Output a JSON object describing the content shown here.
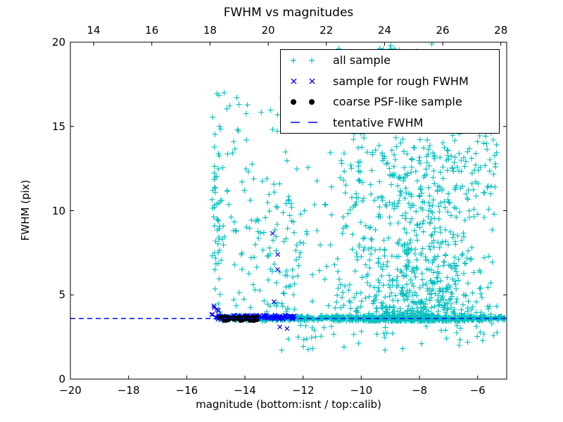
{
  "chart_data": {
    "type": "scatter",
    "title": "FWHM vs magnitudes",
    "xlabel": "magnitude (bottom:isnt / top:calib)",
    "ylabel": "FWHM (pix)",
    "xlim": [
      -20,
      -5
    ],
    "ylim": [
      0,
      20
    ],
    "x_ticks_bottom": [
      -20,
      -18,
      -16,
      -14,
      -12,
      -10,
      -8,
      -6
    ],
    "x_ticks_top": [
      14,
      16,
      18,
      20,
      22,
      24,
      26,
      28
    ],
    "top_axis_offset": 33.2,
    "y_ticks": [
      0,
      5,
      10,
      15,
      20
    ],
    "grid": false,
    "legend_position": "upper right",
    "tentative_fwhm": 3.6,
    "axis_color": "#000000",
    "background": "#ffffff",
    "legend": [
      {
        "label": "all sample",
        "marker": "plus",
        "color": "#00bfbf"
      },
      {
        "label": "sample for rough FWHM",
        "marker": "cross",
        "color": "#0000ff"
      },
      {
        "label": "coarse PSF-like sample",
        "marker": "dot",
        "color": "#000000"
      },
      {
        "label": "tentative FWHM",
        "marker": "dash",
        "color": "#0000ff"
      }
    ],
    "series": [
      {
        "name": "all sample",
        "marker": "plus",
        "color": "#00bfbf",
        "clusters": [
          {
            "n": 40,
            "x": [
              -15.15,
              -14.82
            ],
            "y": [
              3.9,
              17.2
            ]
          },
          {
            "n": 115,
            "x": [
              -15.1,
              -12.45
            ],
            "y": [
              4.2,
              17.0
            ]
          },
          {
            "n": 28,
            "x": [
              -13.7,
              -12.3
            ],
            "y": [
              4.0,
              9.5
            ]
          },
          {
            "n": 55,
            "x": [
              -12.6,
              -10.6
            ],
            "y": [
              2.3,
              13.5
            ]
          },
          {
            "n": 230,
            "x": [
              -14.9,
              -12.3
            ],
            "mode": "band",
            "y_center": 3.62,
            "y_spread": 0.2
          },
          {
            "n": 470,
            "x": [
              -12.3,
              -5.05
            ],
            "mode": "band",
            "y_center": 3.62,
            "y_spread": 0.22
          },
          {
            "n": 840,
            "x": [
              -11.05,
              -5.05
            ],
            "mode": "wedge",
            "y": [
              3.45,
              13.8
            ]
          },
          {
            "n": 150,
            "x": [
              -10.6,
              -5.3
            ],
            "y": [
              9.5,
              15.4
            ]
          },
          {
            "n": 14,
            "x": [
              -11.5,
              -7.0
            ],
            "y": [
              15.5,
              19.2
            ]
          },
          {
            "n": 9,
            "x": [
              -10.8,
              -6.8
            ],
            "y": [
              19.3,
              19.9
            ]
          },
          {
            "n": 45,
            "x": [
              -12.8,
              -5.1
            ],
            "y": [
              1.7,
              3.3
            ]
          }
        ]
      },
      {
        "name": "sample for rough FWHM",
        "marker": "cross",
        "color": "#0000ff",
        "clusters": [
          {
            "n": 150,
            "x": [
              -14.95,
              -12.3
            ],
            "mode": "band",
            "y_center": 3.68,
            "y_spread": 0.18
          },
          {
            "n": 8,
            "x": [
              -15.15,
              -14.9
            ],
            "y": [
              3.6,
              4.3
            ]
          }
        ],
        "points": [
          [
            -15.07,
            4.35
          ],
          [
            -13.05,
            8.65
          ],
          [
            -12.87,
            7.4
          ],
          [
            -12.88,
            6.5
          ],
          [
            -13.0,
            4.6
          ],
          [
            -12.8,
            3.1
          ],
          [
            -12.55,
            3.0
          ]
        ]
      },
      {
        "name": "coarse PSF-like sample",
        "marker": "dot",
        "color": "#000000",
        "clusters": [
          {
            "n": 70,
            "x": [
              -14.87,
              -13.55
            ],
            "y": [
              3.47,
              3.72
            ]
          }
        ]
      },
      {
        "name": "tentative FWHM",
        "type": "hline",
        "y": 3.6,
        "color": "#0000ff",
        "linestyle": "dashed"
      }
    ]
  }
}
